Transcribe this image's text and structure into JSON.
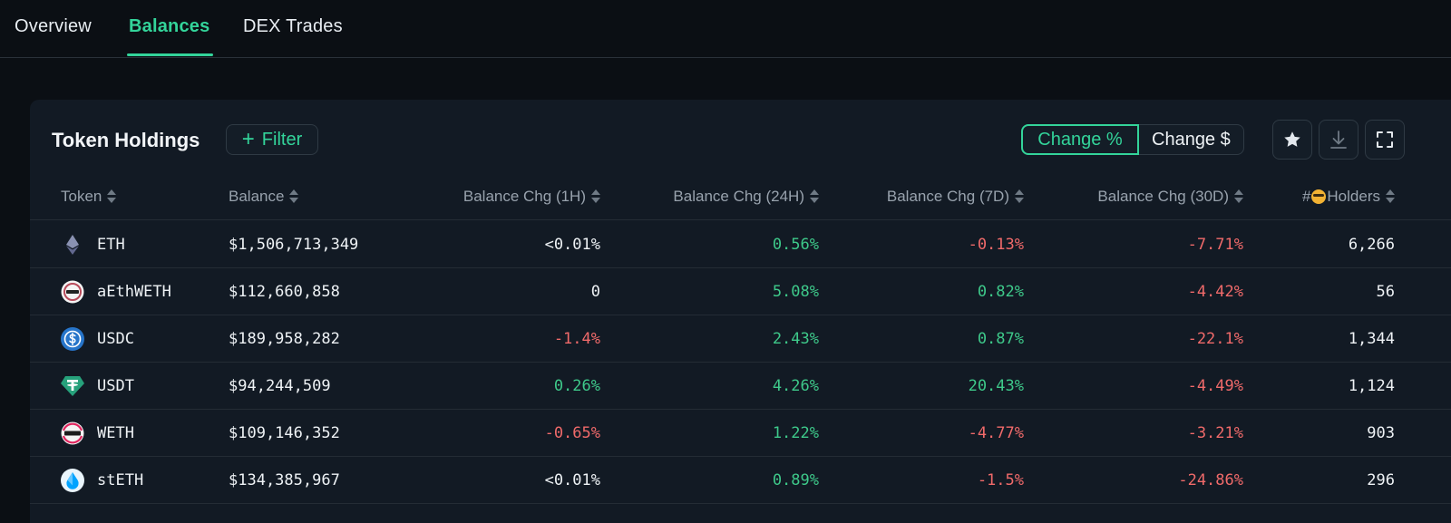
{
  "tabs": [
    {
      "label": "Overview",
      "active": false
    },
    {
      "label": "Balances",
      "active": true
    },
    {
      "label": "DEX Trades",
      "active": false
    }
  ],
  "panel": {
    "title": "Token Holdings",
    "filter_label": "Filter",
    "segment": {
      "options": [
        "Change %",
        "Change $"
      ],
      "selected": "Change %"
    },
    "actions": [
      "star-icon",
      "download-icon",
      "fullscreen-icon"
    ]
  },
  "columns": {
    "token": "Token",
    "balance": "Balance",
    "chg_1h": "Balance Chg (1H)",
    "chg_24h": "Balance Chg (24H)",
    "chg_7d": "Balance Chg (7D)",
    "chg_30d": "Balance Chg (30D)",
    "holders_prefix": "#",
    "holders": "Holders"
  },
  "rows": [
    {
      "token": "ETH",
      "icon": "eth-icon",
      "balance": "$1,506,713,349",
      "chg_1h": "<0.01%",
      "chg_24h": "0.56%",
      "chg_7d": "-0.13%",
      "chg_30d": "-7.71%",
      "holders": "6,266"
    },
    {
      "token": "aEthWETH",
      "icon": "aethweth-icon",
      "balance": "$112,660,858",
      "chg_1h": "0",
      "chg_24h": "5.08%",
      "chg_7d": "0.82%",
      "chg_30d": "-4.42%",
      "holders": "56"
    },
    {
      "token": "USDC",
      "icon": "usdc-icon",
      "balance": "$189,958,282",
      "chg_1h": "-1.4%",
      "chg_24h": "2.43%",
      "chg_7d": "0.87%",
      "chg_30d": "-22.1%",
      "holders": "1,344"
    },
    {
      "token": "USDT",
      "icon": "usdt-icon",
      "balance": "$94,244,509",
      "chg_1h": "0.26%",
      "chg_24h": "4.26%",
      "chg_7d": "20.43%",
      "chg_30d": "-4.49%",
      "holders": "1,124"
    },
    {
      "token": "WETH",
      "icon": "weth-icon",
      "balance": "$109,146,352",
      "chg_1h": "-0.65%",
      "chg_24h": "1.22%",
      "chg_7d": "-4.77%",
      "chg_30d": "-3.21%",
      "holders": "903"
    },
    {
      "token": "stETH",
      "icon": "steth-icon",
      "balance": "$134,385,967",
      "chg_1h": "<0.01%",
      "chg_24h": "0.89%",
      "chg_7d": "-1.5%",
      "chg_30d": "-24.86%",
      "holders": "296"
    }
  ],
  "colors": {
    "accent": "#33d49a",
    "positive": "#3ec98a",
    "negative": "#f06a6a",
    "background": "#0b0f14",
    "panel": "#121a24"
  }
}
